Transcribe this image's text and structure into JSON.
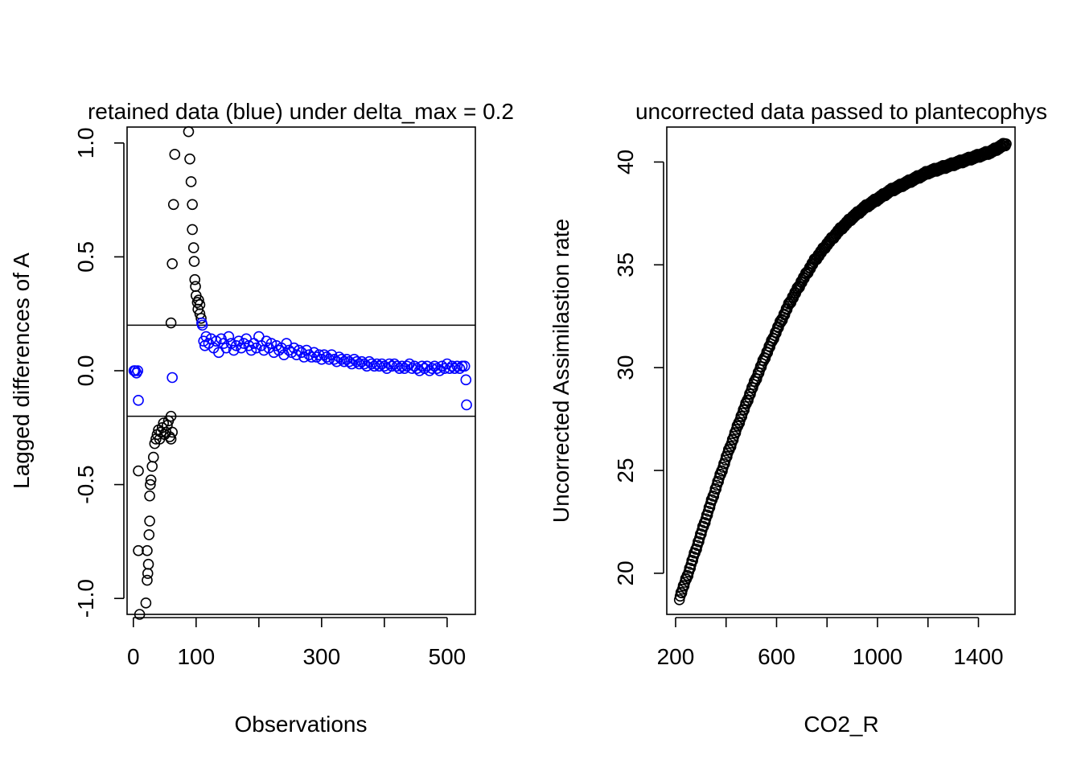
{
  "chart_data": [
    {
      "type": "scatter",
      "title": "retained data (blue) under delta_max =  0.2",
      "xlabel": "Observations",
      "ylabel": "Lagged differences of A",
      "xlim": [
        -10,
        545
      ],
      "ylim": [
        -1.07,
        1.07
      ],
      "xticks": [
        0,
        100,
        200,
        300,
        400,
        500
      ],
      "xtick_labels": [
        "0",
        "100",
        "",
        "300",
        "",
        "500"
      ],
      "yticks": [
        -1.0,
        -0.5,
        0.0,
        0.5,
        1.0
      ],
      "ytick_labels": [
        "-1.0",
        "-0.5",
        "0.0",
        "0.5",
        "1.0"
      ],
      "hlines": [
        0.2,
        -0.2
      ],
      "grid": false,
      "colors": {
        "rejected": "#000000",
        "retained": "#0000ff"
      },
      "series": [
        {
          "color": "#000000",
          "points": [
            [
              8,
              -0.44
            ],
            [
              8,
              -0.79
            ],
            [
              10,
              -1.07
            ],
            [
              20,
              -1.02
            ],
            [
              22,
              -0.92
            ],
            [
              22,
              -0.79
            ],
            [
              23,
              -0.89
            ],
            [
              24,
              -0.85
            ],
            [
              25,
              -0.72
            ],
            [
              26,
              -0.66
            ],
            [
              26,
              -0.55
            ],
            [
              27,
              -0.5
            ],
            [
              28,
              -0.48
            ],
            [
              30,
              -0.42
            ],
            [
              32,
              -0.38
            ],
            [
              34,
              -0.32
            ],
            [
              36,
              -0.3
            ],
            [
              38,
              -0.28
            ],
            [
              40,
              -0.26
            ],
            [
              42,
              -0.3
            ],
            [
              44,
              -0.27
            ],
            [
              46,
              -0.25
            ],
            [
              48,
              -0.23
            ],
            [
              50,
              -0.28
            ],
            [
              52,
              -0.27
            ],
            [
              54,
              -0.24
            ],
            [
              56,
              -0.22
            ],
            [
              58,
              -0.29
            ],
            [
              60,
              -0.3
            ],
            [
              60,
              -0.2
            ],
            [
              62,
              -0.27
            ],
            [
              60,
              0.21
            ],
            [
              62,
              0.47
            ],
            [
              64,
              0.73
            ],
            [
              66,
              0.95
            ],
            [
              88,
              1.05
            ],
            [
              90,
              0.93
            ],
            [
              92,
              0.83
            ],
            [
              94,
              0.73
            ],
            [
              94,
              0.62
            ],
            [
              96,
              0.54
            ],
            [
              97,
              0.48
            ],
            [
              98,
              0.4
            ],
            [
              99,
              0.37
            ],
            [
              100,
              0.33
            ],
            [
              102,
              0.3
            ],
            [
              103,
              0.27
            ],
            [
              104,
              0.31
            ],
            [
              106,
              0.29
            ],
            [
              106,
              0.25
            ],
            [
              108,
              0.23
            ]
          ]
        },
        {
          "color": "#0000ff",
          "points": [
            [
              1,
              0.0
            ],
            [
              3,
              0.0
            ],
            [
              5,
              -0.01
            ],
            [
              7,
              0.0
            ],
            [
              8,
              -0.13
            ],
            [
              62,
              -0.03
            ],
            [
              530,
              -0.04
            ],
            [
              531,
              -0.15
            ],
            [
              109,
              0.21
            ],
            [
              110,
              0.2
            ],
            [
              112,
              0.13
            ],
            [
              114,
              0.11
            ],
            [
              116,
              0.15
            ],
            [
              120,
              0.12
            ],
            [
              124,
              0.14
            ],
            [
              128,
              0.1
            ],
            [
              132,
              0.13
            ],
            [
              136,
              0.08
            ],
            [
              140,
              0.14
            ],
            [
              144,
              0.12
            ],
            [
              148,
              0.1
            ],
            [
              152,
              0.15
            ],
            [
              156,
              0.12
            ],
            [
              160,
              0.09
            ],
            [
              164,
              0.11
            ],
            [
              168,
              0.13
            ],
            [
              172,
              0.1
            ],
            [
              176,
              0.12
            ],
            [
              180,
              0.14
            ],
            [
              184,
              0.11
            ],
            [
              188,
              0.09
            ],
            [
              192,
              0.12
            ],
            [
              196,
              0.1
            ],
            [
              200,
              0.15
            ],
            [
              204,
              0.11
            ],
            [
              208,
              0.09
            ],
            [
              212,
              0.13
            ],
            [
              216,
              0.1
            ],
            [
              220,
              0.12
            ],
            [
              224,
              0.08
            ],
            [
              228,
              0.11
            ],
            [
              232,
              0.09
            ],
            [
              236,
              0.1
            ],
            [
              240,
              0.07
            ],
            [
              244,
              0.12
            ],
            [
              248,
              0.09
            ],
            [
              252,
              0.08
            ],
            [
              256,
              0.1
            ],
            [
              260,
              0.07
            ],
            [
              264,
              0.09
            ],
            [
              268,
              0.08
            ],
            [
              272,
              0.06
            ],
            [
              276,
              0.09
            ],
            [
              280,
              0.07
            ],
            [
              284,
              0.06
            ],
            [
              288,
              0.08
            ],
            [
              292,
              0.06
            ],
            [
              296,
              0.07
            ],
            [
              300,
              0.05
            ],
            [
              304,
              0.07
            ],
            [
              308,
              0.06
            ],
            [
              312,
              0.05
            ],
            [
              316,
              0.07
            ],
            [
              320,
              0.05
            ],
            [
              324,
              0.04
            ],
            [
              328,
              0.06
            ],
            [
              332,
              0.05
            ],
            [
              336,
              0.04
            ],
            [
              340,
              0.05
            ],
            [
              344,
              0.04
            ],
            [
              348,
              0.03
            ],
            [
              352,
              0.05
            ],
            [
              356,
              0.04
            ],
            [
              360,
              0.03
            ],
            [
              364,
              0.04
            ],
            [
              368,
              0.03
            ],
            [
              372,
              0.02
            ],
            [
              376,
              0.04
            ],
            [
              380,
              0.03
            ],
            [
              384,
              0.02
            ],
            [
              388,
              0.03
            ],
            [
              392,
              0.02
            ],
            [
              396,
              0.03
            ],
            [
              400,
              0.02
            ],
            [
              404,
              0.01
            ],
            [
              408,
              0.03
            ],
            [
              412,
              0.02
            ],
            [
              416,
              0.03
            ],
            [
              420,
              0.02
            ],
            [
              424,
              0.01
            ],
            [
              428,
              0.02
            ],
            [
              432,
              0.01
            ],
            [
              436,
              0.02
            ],
            [
              440,
              0.03
            ],
            [
              444,
              0.01
            ],
            [
              448,
              0.02
            ],
            [
              452,
              0.01
            ],
            [
              456,
              0.0
            ],
            [
              460,
              0.02
            ],
            [
              464,
              0.01
            ],
            [
              468,
              0.02
            ],
            [
              472,
              0.0
            ],
            [
              476,
              0.01
            ],
            [
              480,
              0.02
            ],
            [
              484,
              0.01
            ],
            [
              488,
              0.0
            ],
            [
              492,
              0.02
            ],
            [
              496,
              0.01
            ],
            [
              500,
              0.03
            ],
            [
              504,
              0.01
            ],
            [
              508,
              0.02
            ],
            [
              512,
              0.01
            ],
            [
              516,
              0.02
            ],
            [
              520,
              0.01
            ],
            [
              524,
              0.02
            ],
            [
              528,
              0.02
            ]
          ]
        }
      ]
    },
    {
      "type": "scatter",
      "title": "uncorrected data passed to plantecophys",
      "xlabel": "CO2_R",
      "ylabel": "Uncorrected Assimilastion rate",
      "xlim": [
        165,
        1545
      ],
      "ylim": [
        18.0,
        41.7
      ],
      "xticks": [
        200,
        400,
        600,
        800,
        1000,
        1200,
        1400
      ],
      "xtick_labels": [
        "200",
        "",
        "600",
        "",
        "1000",
        "",
        "1400"
      ],
      "yticks": [
        20,
        25,
        30,
        35,
        40
      ],
      "ytick_labels": [
        "20",
        "25",
        "30",
        "35",
        "40"
      ],
      "grid": false,
      "curve": {
        "color": "#000000",
        "x_start": 215,
        "x_end": 1510,
        "count": 420,
        "x": [
          215,
          250,
          300,
          350,
          400,
          450,
          500,
          550,
          600,
          650,
          700,
          750,
          800,
          850,
          900,
          950,
          1000,
          1050,
          1100,
          1150,
          1200,
          1250,
          1300,
          1350,
          1400,
          1450,
          1510
        ],
        "y": [
          18.8,
          20.0,
          21.9,
          23.8,
          25.6,
          27.3,
          28.9,
          30.4,
          31.8,
          33.1,
          34.2,
          35.2,
          36.0,
          36.7,
          37.3,
          37.8,
          38.2,
          38.6,
          38.9,
          39.2,
          39.5,
          39.7,
          39.9,
          40.1,
          40.3,
          40.5,
          40.9
        ]
      }
    }
  ]
}
